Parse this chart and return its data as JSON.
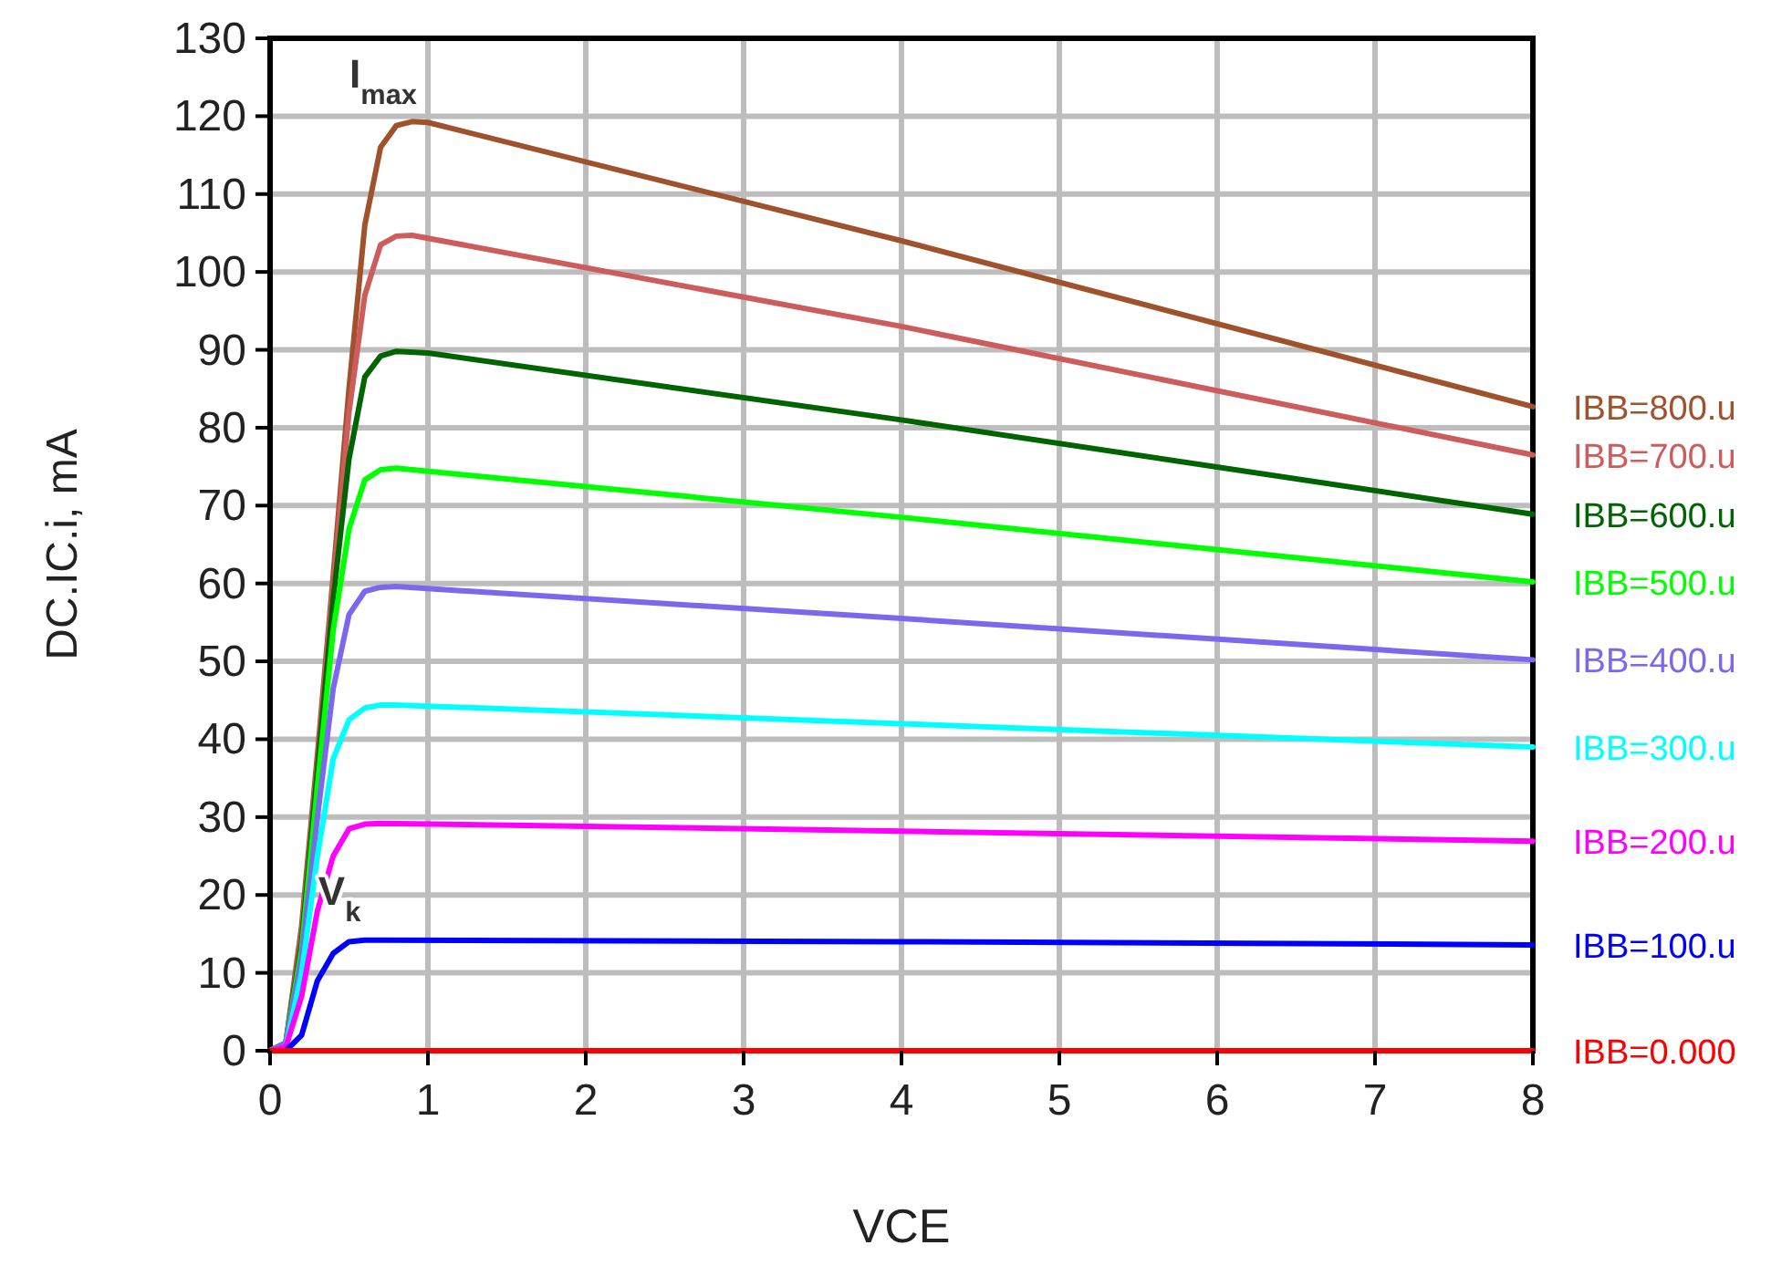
{
  "chart_data": {
    "type": "line",
    "xlabel": "VCE",
    "ylabel": "DC.IC.i, mA",
    "xlim": [
      0,
      8
    ],
    "ylim": [
      0,
      130
    ],
    "xticks": [
      0,
      1,
      2,
      3,
      4,
      5,
      6,
      7,
      8
    ],
    "yticks": [
      0,
      10,
      20,
      30,
      40,
      50,
      60,
      70,
      80,
      90,
      100,
      110,
      120,
      130
    ],
    "grid": true,
    "marker": "none",
    "line_style": "solid",
    "annotations": [
      "I$_{max}$",
      "V$_{k}$"
    ],
    "series": [
      {
        "name": "IBB=800.u",
        "color": "#a0522d",
        "x": [
          0,
          0.1,
          0.2,
          0.3,
          0.4,
          0.5,
          0.6,
          0.7,
          0.8,
          0.9,
          1,
          4,
          8
        ],
        "values": [
          0,
          1,
          16,
          38,
          61,
          85,
          106,
          116,
          118.8,
          119.3,
          119.2,
          104,
          82.7
        ]
      },
      {
        "name": "IBB=700.u",
        "color": "#cd5c5c",
        "x": [
          0,
          0.1,
          0.2,
          0.3,
          0.4,
          0.5,
          0.6,
          0.7,
          0.8,
          0.9,
          4,
          8
        ],
        "values": [
          0,
          1,
          15,
          37,
          60,
          82,
          97,
          103.5,
          104.6,
          104.7,
          93,
          76.5
        ]
      },
      {
        "name": "IBB=600.u",
        "color": "#006400",
        "x": [
          0,
          0.1,
          0.2,
          0.3,
          0.4,
          0.5,
          0.6,
          0.7,
          0.8,
          1,
          4,
          8
        ],
        "values": [
          0,
          1,
          14,
          36,
          58,
          76,
          86.5,
          89.2,
          89.8,
          89.6,
          81,
          68.9
        ]
      },
      {
        "name": "IBB=500.u",
        "color": "#00ff00",
        "x": [
          0,
          0.1,
          0.2,
          0.3,
          0.4,
          0.5,
          0.6,
          0.7,
          0.8,
          4,
          8
        ],
        "values": [
          0,
          1,
          13,
          34,
          54,
          67,
          73.3,
          74.6,
          74.8,
          68.5,
          60.2
        ]
      },
      {
        "name": "IBB=400.u",
        "color": "#7b68ee",
        "x": [
          0,
          0.1,
          0.2,
          0.3,
          0.4,
          0.5,
          0.6,
          0.7,
          0.8,
          4,
          8
        ],
        "values": [
          0,
          1,
          12,
          30,
          46.5,
          56,
          59,
          59.5,
          59.6,
          55.5,
          50.2
        ]
      },
      {
        "name": "IBB=300.u",
        "color": "#00ffff",
        "x": [
          0,
          0.1,
          0.2,
          0.3,
          0.4,
          0.5,
          0.6,
          0.7,
          0.8,
          4,
          8
        ],
        "values": [
          0,
          0.5,
          10,
          25,
          37.5,
          42.5,
          44,
          44.4,
          44.4,
          42,
          39
        ]
      },
      {
        "name": "IBB=200.u",
        "color": "#ff00ff",
        "x": [
          0,
          0.1,
          0.2,
          0.3,
          0.4,
          0.5,
          0.6,
          0.7,
          4,
          8
        ],
        "values": [
          0,
          0.5,
          7,
          18,
          25,
          28.5,
          29.1,
          29.2,
          28.2,
          26.9
        ]
      },
      {
        "name": "IBB=100.u",
        "color": "#0000ff",
        "x": [
          0,
          0.1,
          0.2,
          0.3,
          0.4,
          0.5,
          0.6,
          0.7,
          4,
          8
        ],
        "values": [
          0,
          0,
          2,
          9,
          12.5,
          14,
          14.2,
          14.2,
          14,
          13.6
        ]
      },
      {
        "name": "IBB=0.000",
        "color": "#ff0000",
        "x": [
          0,
          8
        ],
        "values": [
          0,
          0
        ]
      }
    ]
  }
}
